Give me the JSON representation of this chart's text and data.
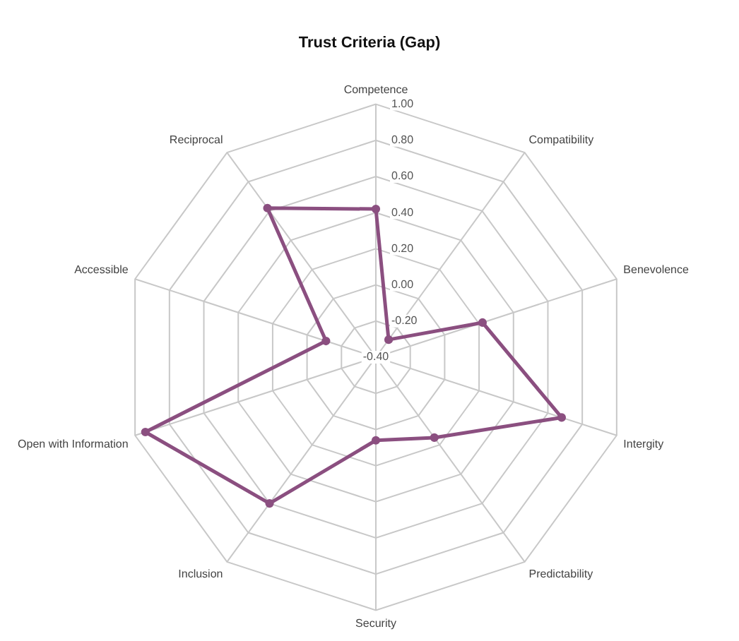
{
  "chart_data": {
    "type": "radar",
    "title": "Trust Criteria (Gap)",
    "categories": [
      "Competence",
      "Compatibility",
      "Benevolence",
      "Intergity",
      "Predictability",
      "Security",
      "Inclusion",
      "Open with Information",
      "Accessible",
      "Reciprocal"
    ],
    "series": [
      {
        "color": "#8b4f80",
        "values": [
          0.42,
          -0.28,
          0.22,
          0.68,
          0.15,
          0.06,
          0.6,
          0.94,
          -0.11,
          0.62
        ]
      }
    ],
    "ylim": [
      -0.4,
      1
    ],
    "yticks": [
      {
        "value": -0.4,
        "label": "-0.40"
      },
      {
        "value": -0.2,
        "label": "-0.20"
      },
      {
        "value": 0,
        "label": "0.00"
      },
      {
        "value": 0.2,
        "label": "0.20"
      },
      {
        "value": 0.4,
        "label": "0.40"
      },
      {
        "value": 0.6,
        "label": "0.60"
      },
      {
        "value": 0.8,
        "label": "0.80"
      },
      {
        "value": 1,
        "label": "1.00"
      }
    ],
    "grid": true,
    "legend": false,
    "marker": "circle"
  }
}
